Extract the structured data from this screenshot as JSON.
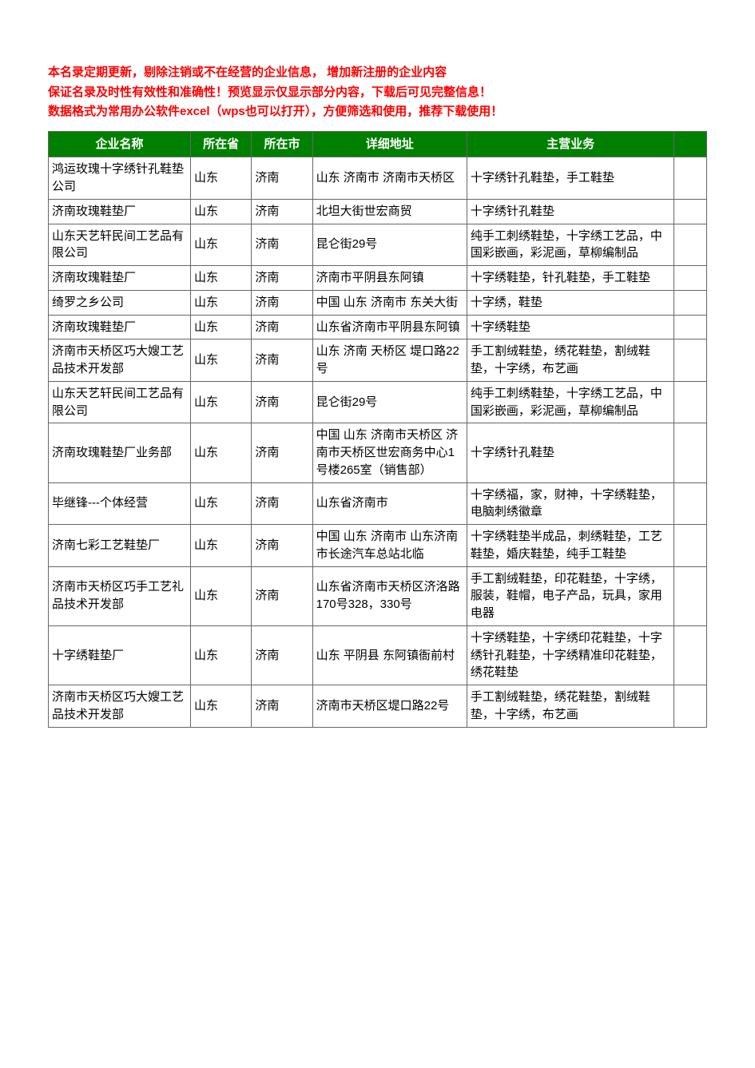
{
  "notice": {
    "line1": "本名录定期更新，剔除注销或不在经营的企业信息，  增加新注册的企业内容",
    "line2": "保证名录及时性有效性和准确性！预览显示仅显示部分内容，下载后可见完整信息！",
    "line3": "数据格式为常用办公软件excel（wps也可以打开），方便筛选和使用，推荐下载使用！"
  },
  "table": {
    "headers": {
      "col1": "企业名称",
      "col2": "所在省",
      "col3": "所在市",
      "col4": "详细地址",
      "col5": "主营业务",
      "col6": ""
    },
    "rows": [
      {
        "c1": "鸿运玫瑰十字绣针孔鞋垫公司",
        "c2": "山东",
        "c3": "济南",
        "c4": "山东 济南市 济南市天桥区",
        "c5": "十字绣针孔鞋垫，手工鞋垫",
        "c6": ""
      },
      {
        "c1": "济南玫瑰鞋垫厂",
        "c2": "山东",
        "c3": "济南",
        "c4": "北坦大街世宏商贸",
        "c5": "十字绣针孔鞋垫",
        "c6": ""
      },
      {
        "c1": "山东天艺轩民间工艺品有限公司",
        "c2": "山东",
        "c3": "济南",
        "c4": "昆仑街29号",
        "c5": "纯手工刺绣鞋垫，十字绣工艺品，中国彩嵌画，彩泥画，草柳编制品",
        "c6": ""
      },
      {
        "c1": "济南玫瑰鞋垫厂",
        "c2": "山东",
        "c3": "济南",
        "c4": "济南市平阴县东阿镇",
        "c5": "十字绣鞋垫，针孔鞋垫，手工鞋垫",
        "c6": ""
      },
      {
        "c1": "绮罗之乡公司",
        "c2": "山东",
        "c3": "济南",
        "c4": "中国 山东 济南市 东关大街",
        "c5": "十字绣，鞋垫",
        "c6": ""
      },
      {
        "c1": "济南玫瑰鞋垫厂",
        "c2": "山东",
        "c3": "济南",
        "c4": "山东省济南市平阴县东阿镇",
        "c5": "十字绣鞋垫",
        "c6": ""
      },
      {
        "c1": "济南市天桥区巧大嫂工艺品技术开发部",
        "c2": "山东",
        "c3": "济南",
        "c4": "山东 济南 天桥区 堤口路22号",
        "c5": "手工割绒鞋垫，绣花鞋垫，割绒鞋垫，十字绣，布艺画",
        "c6": ""
      },
      {
        "c1": "山东天艺轩民间工艺品有限公司",
        "c2": "山东",
        "c3": "济南",
        "c4": "昆仑街29号",
        "c5": "纯手工刺绣鞋垫，十字绣工艺品，中国彩嵌画，彩泥画，草柳编制品",
        "c6": ""
      },
      {
        "c1": "济南玫瑰鞋垫厂业务部",
        "c2": "山东",
        "c3": "济南",
        "c4": "中国 山东 济南市天桥区 济南市天桥区世宏商务中心1号楼265室（销售部）",
        "c5": "十字绣针孔鞋垫",
        "c6": ""
      },
      {
        "c1": "毕继锋---个体经营",
        "c2": "山东",
        "c3": "济南",
        "c4": "山东省济南市",
        "c5": "十字绣福，家，财神，十字绣鞋垫，电脑刺绣徽章",
        "c6": ""
      },
      {
        "c1": "济南七彩工艺鞋垫厂",
        "c2": "山东",
        "c3": "济南",
        "c4": "中国 山东 济南市 山东济南市长途汽车总站北临",
        "c5": "十字绣鞋垫半成品，刺绣鞋垫，工艺鞋垫，婚庆鞋垫，纯手工鞋垫",
        "c6": ""
      },
      {
        "c1": "济南市天桥区巧手工艺礼品技术开发部",
        "c2": "山东",
        "c3": "济南",
        "c4": "山东省济南市天桥区济洛路170号328，330号",
        "c5": "手工割绒鞋垫，印花鞋垫，十字绣，服装，鞋帽，电子产品，玩具，家用电器",
        "c6": ""
      },
      {
        "c1": "十字绣鞋垫厂",
        "c2": "山东",
        "c3": "济南",
        "c4": "山东 平阴县 东阿镇衙前村",
        "c5": "十字绣鞋垫，十字绣印花鞋垫，十字绣针孔鞋垫，十字绣精准印花鞋垫，绣花鞋垫",
        "c6": ""
      },
      {
        "c1": "济南市天桥区巧大嫂工艺品技术开发部",
        "c2": "山东",
        "c3": "济南",
        "c4": "济南市天桥区堤口路22号",
        "c5": "手工割绒鞋垫，绣花鞋垫，割绒鞋垫，十字绣，布艺画",
        "c6": ""
      }
    ]
  },
  "colors": {
    "notice_text": "#ff0000",
    "header_bg": "#008000",
    "header_text": "#ffffff",
    "border": "#666666",
    "background": "#ffffff",
    "cell_text": "#000000"
  }
}
